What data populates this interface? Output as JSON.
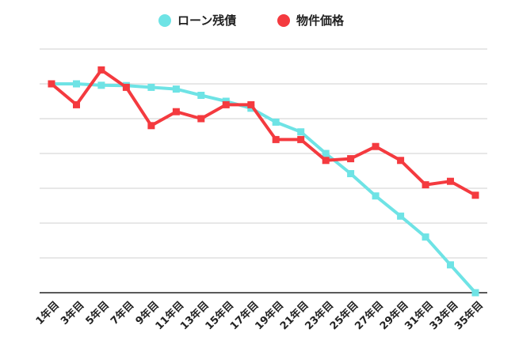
{
  "chart_data": {
    "type": "line",
    "title": "",
    "xlabel": "",
    "ylabel": "",
    "categories": [
      "1年目",
      "3年目",
      "5年目",
      "7年目",
      "9年目",
      "11年目",
      "13年目",
      "15年目",
      "17年目",
      "19年目",
      "21年目",
      "23年目",
      "25年目",
      "27年目",
      "29年目",
      "31年目",
      "33年目",
      "35年目"
    ],
    "ylim": [
      0,
      6
    ],
    "grid": true,
    "legend_position": "top-center",
    "series": [
      {
        "name": "ローン残債",
        "color": "#6ee3e5",
        "marker": "square",
        "values": [
          6.0,
          6.0,
          5.96,
          5.95,
          5.9,
          5.85,
          5.67,
          5.5,
          5.3,
          4.9,
          4.62,
          4.0,
          3.42,
          2.78,
          2.2,
          1.6,
          0.8,
          0.0
        ]
      },
      {
        "name": "物件価格",
        "color": "#f43a3f",
        "marker": "square",
        "values": [
          6.0,
          5.4,
          6.4,
          5.9,
          4.8,
          5.2,
          5.0,
          5.4,
          5.4,
          4.4,
          4.4,
          3.8,
          3.85,
          4.2,
          3.8,
          3.1,
          3.2,
          2.8
        ]
      }
    ]
  }
}
